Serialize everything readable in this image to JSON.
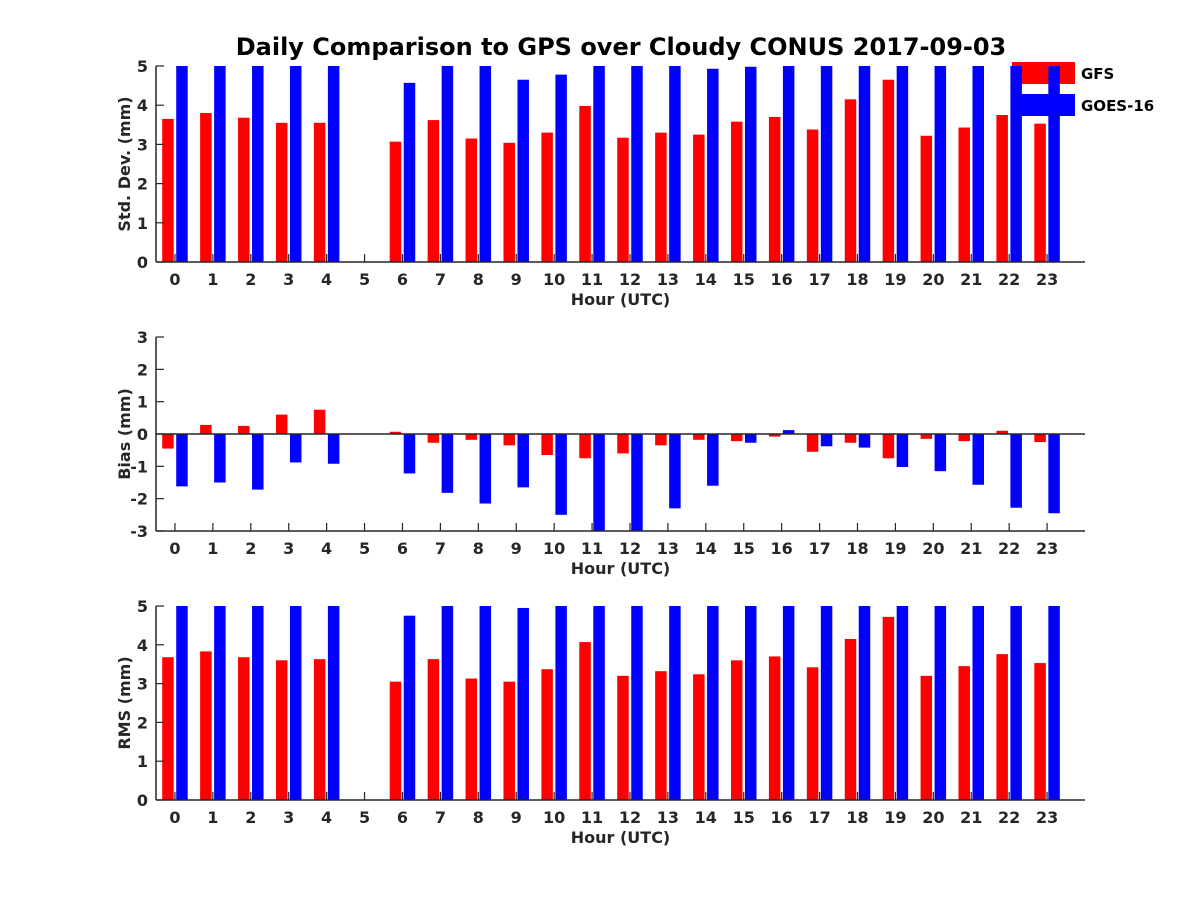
{
  "chart_data": {
    "type": "bar",
    "title": "Daily Comparison to GPS over Cloudy CONUS 2017-09-03",
    "categories": [
      "0",
      "1",
      "2",
      "3",
      "4",
      "5",
      "6",
      "7",
      "8",
      "9",
      "10",
      "11",
      "12",
      "13",
      "14",
      "15",
      "16",
      "17",
      "18",
      "19",
      "20",
      "21",
      "22",
      "23"
    ],
    "legend": {
      "placement": "top-right",
      "entries": [
        {
          "name": "GFS",
          "color": "#ff0000"
        },
        {
          "name": "GOES-16",
          "color": "#0000ff"
        }
      ]
    },
    "panels": [
      {
        "id": "std",
        "ylabel": "Std. Dev. (mm)",
        "xlabel": "Hour (UTC)",
        "ylim": [
          0,
          5
        ],
        "yticks": [
          "0",
          "1",
          "2",
          "3",
          "4",
          "5"
        ],
        "series": [
          {
            "name": "GFS",
            "color": "#ff0000",
            "values": [
              3.65,
              3.8,
              3.68,
              3.55,
              3.55,
              null,
              3.07,
              3.62,
              3.15,
              3.04,
              3.3,
              3.98,
              3.17,
              3.3,
              3.25,
              3.58,
              3.7,
              3.38,
              4.15,
              4.65,
              3.22,
              3.43,
              3.75,
              3.53
            ]
          },
          {
            "name": "GOES-16",
            "color": "#0000ff",
            "values": [
              5,
              5,
              5,
              5,
              5,
              null,
              4.57,
              5,
              5,
              4.65,
              4.78,
              5,
              5,
              5,
              4.93,
              4.98,
              5,
              5,
              5,
              5,
              5,
              5,
              5,
              5
            ]
          }
        ]
      },
      {
        "id": "bias",
        "ylabel": "Bias (mm)",
        "xlabel": "Hour (UTC)",
        "ylim": [
          -3,
          3
        ],
        "yticks": [
          "-3",
          "-2",
          "-1",
          "0",
          "1",
          "2",
          "3"
        ],
        "series": [
          {
            "name": "GFS",
            "color": "#ff0000",
            "values": [
              -0.45,
              0.28,
              0.25,
              0.6,
              0.75,
              null,
              0.07,
              -0.27,
              -0.18,
              -0.35,
              -0.65,
              -0.75,
              -0.6,
              -0.35,
              -0.18,
              -0.22,
              -0.08,
              -0.55,
              -0.27,
              -0.75,
              -0.15,
              -0.22,
              0.1,
              -0.25
            ]
          },
          {
            "name": "GOES-16",
            "color": "#0000ff",
            "values": [
              -1.62,
              -1.5,
              -1.72,
              -0.88,
              -0.92,
              null,
              -1.22,
              -1.82,
              -2.15,
              -1.65,
              -2.5,
              -3,
              -3,
              -2.3,
              -1.6,
              -0.27,
              0.12,
              -0.38,
              -0.42,
              -1.02,
              -1.15,
              -1.57,
              -2.28,
              -2.45
            ]
          }
        ]
      },
      {
        "id": "rms",
        "ylabel": "RMS (mm)",
        "xlabel": "Hour (UTC)",
        "ylim": [
          0,
          5
        ],
        "yticks": [
          "0",
          "1",
          "2",
          "3",
          "4",
          "5"
        ],
        "series": [
          {
            "name": "GFS",
            "color": "#ff0000",
            "values": [
              3.68,
              3.83,
              3.68,
              3.6,
              3.63,
              null,
              3.05,
              3.63,
              3.13,
              3.05,
              3.37,
              4.07,
              3.2,
              3.32,
              3.24,
              3.6,
              3.7,
              3.42,
              4.15,
              4.72,
              3.2,
              3.45,
              3.76,
              3.53
            ]
          },
          {
            "name": "GOES-16",
            "color": "#0000ff",
            "values": [
              5,
              5,
              5,
              5,
              5,
              null,
              4.75,
              5,
              5,
              4.95,
              5,
              5,
              5,
              5,
              5,
              5,
              5,
              5,
              5,
              5,
              5,
              5,
              5,
              5
            ]
          }
        ]
      }
    ]
  }
}
